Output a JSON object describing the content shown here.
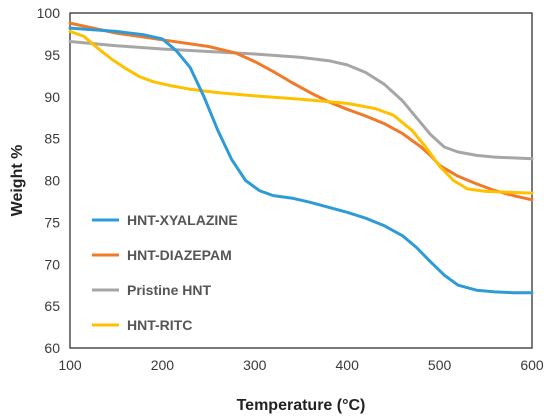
{
  "chart_data": {
    "type": "line",
    "title": "",
    "xlabel": "Temperature (°C)",
    "ylabel": "Weight %",
    "xlim": [
      100,
      600
    ],
    "ylim": [
      60,
      100
    ],
    "xticks": [
      100,
      200,
      300,
      400,
      500,
      600
    ],
    "yticks": [
      60,
      65,
      70,
      75,
      80,
      85,
      90,
      95,
      100
    ],
    "grid": false,
    "legend": "bottom-left",
    "series": [
      {
        "name": "HNT-XYALAZINE",
        "color": "#2e9bd6",
        "x": [
          100,
          150,
          180,
          200,
          215,
          230,
          245,
          260,
          275,
          290,
          305,
          320,
          340,
          360,
          380,
          400,
          420,
          440,
          460,
          475,
          490,
          505,
          520,
          540,
          560,
          580,
          600
        ],
        "y": [
          98.2,
          97.8,
          97.4,
          96.9,
          95.5,
          93.5,
          90.0,
          86.0,
          82.5,
          80.0,
          78.8,
          78.2,
          77.9,
          77.4,
          76.8,
          76.2,
          75.5,
          74.6,
          73.4,
          72.0,
          70.3,
          68.7,
          67.5,
          66.9,
          66.7,
          66.6,
          66.6
        ]
      },
      {
        "name": "HNT-DIAZEPAM",
        "color": "#f07a2a",
        "x": [
          100,
          150,
          200,
          250,
          280,
          300,
          320,
          340,
          360,
          380,
          400,
          420,
          440,
          460,
          480,
          490,
          500,
          520,
          540,
          560,
          580,
          600
        ],
        "y": [
          98.8,
          97.6,
          96.8,
          96.0,
          95.2,
          94.2,
          93.0,
          91.7,
          90.5,
          89.4,
          88.5,
          87.7,
          86.8,
          85.6,
          84.0,
          83.0,
          81.8,
          80.5,
          79.6,
          78.8,
          78.2,
          77.7
        ]
      },
      {
        "name": "Pristine HNT",
        "color": "#a6a6a6",
        "x": [
          100,
          150,
          200,
          250,
          300,
          350,
          380,
          400,
          420,
          440,
          460,
          475,
          490,
          505,
          520,
          540,
          560,
          580,
          600
        ],
        "y": [
          96.6,
          96.1,
          95.7,
          95.4,
          95.1,
          94.7,
          94.3,
          93.8,
          92.9,
          91.5,
          89.5,
          87.5,
          85.5,
          84.0,
          83.4,
          83.0,
          82.8,
          82.7,
          82.6
        ]
      },
      {
        "name": "HNT-RITC",
        "color": "#ffc000",
        "x": [
          100,
          115,
          130,
          145,
          160,
          175,
          190,
          210,
          230,
          260,
          300,
          350,
          400,
          430,
          450,
          470,
          485,
          500,
          515,
          530,
          550,
          575,
          600
        ],
        "y": [
          97.8,
          97.2,
          95.8,
          94.5,
          93.4,
          92.4,
          91.8,
          91.3,
          90.9,
          90.5,
          90.1,
          89.7,
          89.2,
          88.6,
          87.8,
          86.0,
          84.0,
          81.7,
          80.0,
          79.0,
          78.7,
          78.6,
          78.5
        ]
      }
    ]
  }
}
